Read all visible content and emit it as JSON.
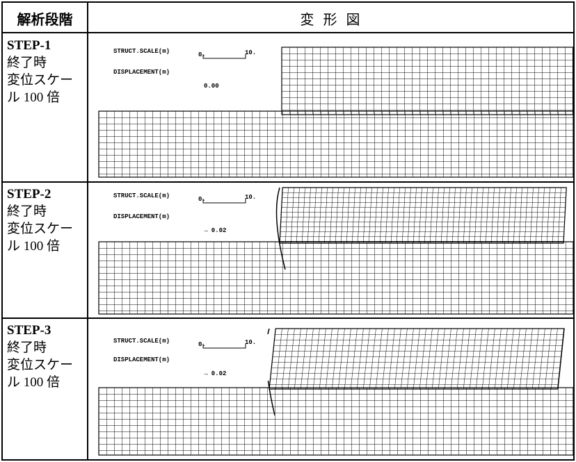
{
  "header": {
    "stage_label": "解析段階",
    "figure_title": "変 形 図"
  },
  "rows": [
    {
      "label_lines": [
        "STEP-1",
        "終了時",
        "変位スケー",
        "ル 100 倍"
      ],
      "figure": {
        "struct_scale_label": "STRUCT.SCALE(m)",
        "scale_start": "0.",
        "scale_end": "10.",
        "displacement_label": "DISPLACEMENT(m)",
        "displacement_value": "0.00"
      }
    },
    {
      "label_lines": [
        "STEP-2",
        "終了時",
        "変位スケー",
        "ル 100 倍"
      ],
      "figure": {
        "struct_scale_label": "STRUCT.SCALE(m)",
        "scale_start": "0.",
        "scale_end": "10.",
        "displacement_label": "DISPLACEMENT(m)",
        "displacement_value": "→ 0.02"
      }
    },
    {
      "label_lines": [
        "STEP-3",
        "終了時",
        "変位スケー",
        "ル 100 倍"
      ],
      "figure": {
        "struct_scale_label": "STRUCT.SCALE(m)",
        "scale_start": "0.",
        "scale_end": "10.",
        "displacement_label": "DISPLACEMENT(m)",
        "displacement_value": "→ 0.02"
      }
    }
  ]
}
